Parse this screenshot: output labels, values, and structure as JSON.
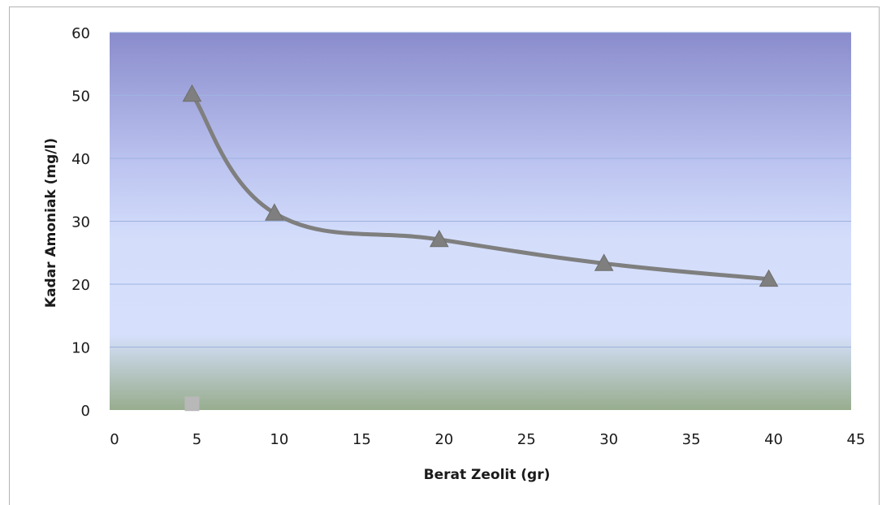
{
  "chart_data": {
    "type": "scatter",
    "title": "",
    "xlabel": "Berat Zeolit (gr)",
    "ylabel": "Kadar Amoniak (mg/l)",
    "xlim": [
      0,
      45
    ],
    "ylim": [
      0,
      60
    ],
    "x_ticks": [
      0,
      5,
      10,
      15,
      20,
      25,
      30,
      35,
      40,
      45
    ],
    "y_ticks": [
      0,
      10,
      20,
      30,
      40,
      50,
      60
    ],
    "grid": "horizontal",
    "legend": "none",
    "plot_background": "gradient #8a8ccc top, #d6e0fc middle, #97ad8e bottom",
    "series": [
      {
        "marker": "triangle",
        "line": "smooth",
        "color": "#7f7f7f",
        "points": [
          {
            "x": 5,
            "y": 50.2
          },
          {
            "x": 10,
            "y": 31.3
          },
          {
            "x": 20,
            "y": 27.1
          },
          {
            "x": 30,
            "y": 23.3
          },
          {
            "x": 40,
            "y": 20.8
          }
        ]
      },
      {
        "marker": "square",
        "line": "none",
        "color": "#b8b8b8",
        "points": [
          {
            "x": 5,
            "y": 1
          }
        ]
      }
    ]
  }
}
